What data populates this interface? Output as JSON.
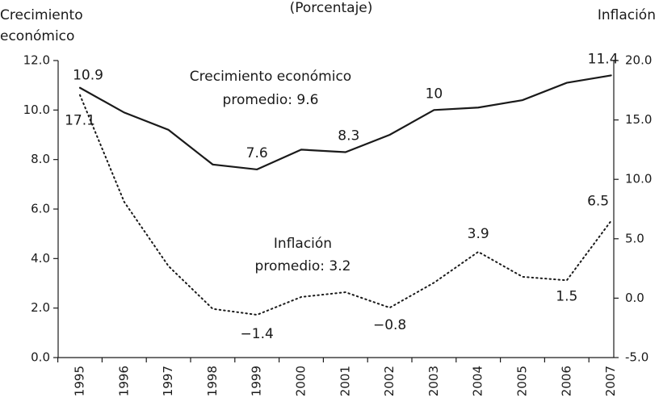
{
  "chart_data": {
    "type": "line",
    "title": "(Porcentaje)",
    "ylabel": [
      "Crecimiento",
      "económico"
    ],
    "y2label": "Inflación",
    "categories": [
      "1995",
      "1996",
      "1997",
      "1998",
      "1999",
      "2000",
      "2001",
      "2002",
      "2003",
      "2004",
      "2005",
      "2006",
      "2007"
    ],
    "series": [
      {
        "name": "Crecimiento económico",
        "color": "#1a1a1a",
        "style": "solid",
        "values": [
          10.9,
          9.9,
          9.2,
          7.8,
          7.6,
          8.4,
          8.3,
          9.0,
          10.0,
          10.1,
          10.4,
          11.1,
          11.4
        ],
        "value_labels": [
          "10.9",
          null,
          null,
          null,
          "7.6",
          null,
          "8.3",
          null,
          "10",
          null,
          null,
          null,
          "11.4"
        ]
      },
      {
        "name": "Inflación",
        "color": "#1a1a1a",
        "style": "dotted",
        "axis": "y2",
        "values": [
          17.1,
          8.1,
          2.7,
          -0.9,
          -1.4,
          0.1,
          0.5,
          -0.8,
          1.3,
          3.9,
          1.8,
          1.5,
          6.5
        ],
        "value_labels": [
          "17.1",
          null,
          null,
          null,
          "−1.4",
          null,
          null,
          "−0.8",
          null,
          "3.9",
          null,
          "1.5",
          "6.5"
        ]
      }
    ],
    "annotations": [
      {
        "text": [
          "Crecimiento económico",
          "promedio: 9.6"
        ]
      },
      {
        "text": [
          "Inflación",
          "promedio: 3.2"
        ]
      }
    ],
    "ylim": [
      0,
      12
    ],
    "yticks": [
      {
        "value": 0,
        "label": "0.0"
      },
      {
        "value": 2,
        "label": "2.0"
      },
      {
        "value": 4,
        "label": "4.0"
      },
      {
        "value": 6,
        "label": "6.0"
      },
      {
        "value": 8,
        "label": "8.0"
      },
      {
        "value": 10,
        "label": "10.0"
      },
      {
        "value": 12,
        "label": "12.0"
      }
    ],
    "y2lim": [
      -5,
      20
    ],
    "y2ticks": [
      {
        "value": -5,
        "label": "-5.0"
      },
      {
        "value": 0,
        "label": "0.0"
      },
      {
        "value": 5,
        "label": "5.0"
      },
      {
        "value": 10,
        "label": "10.0"
      },
      {
        "value": 15,
        "label": "15.0"
      },
      {
        "value": 20,
        "label": "20.0"
      }
    ],
    "grid": false
  }
}
